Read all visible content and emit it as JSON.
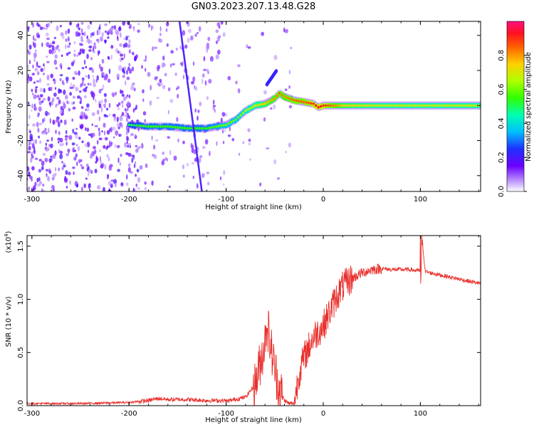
{
  "title": "GN03.2023.207.13.48.G28",
  "colors": {
    "axis": "#000000",
    "snr_line": "#e8302c",
    "signal": "#4a10ff"
  },
  "chart_data": [
    {
      "type": "heatmap",
      "xlabel": "Height of straight line (km)",
      "ylabel": "Frequency (Hz)",
      "xlim": [
        -305,
        162
      ],
      "ylim": [
        -49,
        48
      ],
      "xticks": [
        "-300",
        "-200",
        "-100",
        "0",
        "100"
      ],
      "xtick_values": [
        -300,
        -200,
        -100,
        0,
        100
      ],
      "yticks": [
        "40",
        "20",
        "0",
        "-20",
        "-40"
      ],
      "ytick_values": [
        40,
        20,
        0,
        -20,
        -40
      ],
      "colorbar": {
        "label": "Normalized spectral amplitude",
        "ticks": [
          "0.0",
          "0.2",
          "0.4",
          "0.6",
          "0.8"
        ],
        "tick_values": [
          0.0,
          0.2,
          0.4,
          0.6,
          0.8
        ],
        "colormap": "rainbow"
      },
      "dominant_frequency_trace": {
        "height_km": [
          -200,
          -180,
          -160,
          -140,
          -120,
          -100,
          -90,
          -80,
          -70,
          -60,
          -50,
          -45,
          -40,
          -30,
          -20,
          -10,
          -5,
          0,
          20,
          60,
          100,
          162
        ],
        "frequency_hz": [
          -11,
          -12,
          -12,
          -13,
          -13,
          -11,
          -8,
          -3,
          0,
          1,
          4,
          7,
          5,
          3,
          2,
          1,
          -1,
          0,
          0,
          0,
          0,
          0
        ],
        "amplitude": [
          0.5,
          0.55,
          0.55,
          0.55,
          0.55,
          0.6,
          0.6,
          0.65,
          0.7,
          0.75,
          0.8,
          0.85,
          0.8,
          0.85,
          0.85,
          0.9,
          0.95,
          0.9,
          0.75,
          0.7,
          0.7,
          0.7
        ]
      },
      "diagonal_trace": {
        "height_km": [
          -148,
          -125
        ],
        "frequency_hz": [
          48,
          -49
        ]
      },
      "secondary_trace": {
        "height_km": [
          -58,
          -48
        ],
        "frequency_hz": [
          12,
          20
        ]
      }
    },
    {
      "type": "line",
      "xlabel": "Height of straight line (km)",
      "ylabel": "SNR (10 * v/v)",
      "scale_label": "(x10",
      "scale_exponent": "4",
      "xlim": [
        -305,
        162
      ],
      "ylim": [
        0,
        1.6
      ],
      "xticks": [
        "-300",
        "-200",
        "-100",
        "0",
        "100"
      ],
      "xtick_values": [
        -300,
        -200,
        -100,
        0,
        100
      ],
      "yticks": [
        "0.0",
        "0.5",
        "1.0",
        "1.5"
      ],
      "ytick_values": [
        0.0,
        0.5,
        1.0,
        1.5
      ],
      "series": [
        {
          "x": [
            -305,
            -250,
            -200,
            -180,
            -170,
            -160,
            -140,
            -120,
            -100,
            -80,
            -70,
            -65,
            -60,
            -58,
            -55,
            -50,
            -45,
            -40,
            -35,
            -30,
            -25,
            -20,
            -15,
            -10,
            -5,
            0,
            5,
            10,
            15,
            20,
            30,
            40,
            50,
            60,
            70,
            80,
            90,
            95,
            100,
            102,
            105,
            110,
            120,
            130,
            140,
            150,
            162
          ],
          "y": [
            0.01,
            0.01,
            0.02,
            0.04,
            0.06,
            0.05,
            0.05,
            0.04,
            0.04,
            0.08,
            0.2,
            0.4,
            0.6,
            0.8,
            0.6,
            0.35,
            0.15,
            0.05,
            0.02,
            0.02,
            0.3,
            0.45,
            0.55,
            0.65,
            0.7,
            0.75,
            0.85,
            0.95,
            1.05,
            1.12,
            1.2,
            1.25,
            1.28,
            1.29,
            1.28,
            1.28,
            1.28,
            1.27,
            1.27,
            1.55,
            1.26,
            1.25,
            1.23,
            1.21,
            1.19,
            1.17,
            1.15
          ]
        }
      ]
    }
  ]
}
